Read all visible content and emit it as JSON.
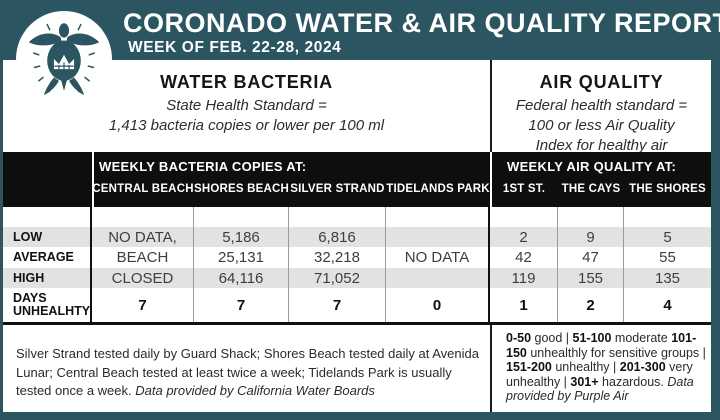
{
  "colors": {
    "teal": "#2B5561",
    "bar_black": "#0E0E0E",
    "stripe_gray": "#E2E2E2",
    "value_gray": "#3E3E3E"
  },
  "header": {
    "title": "CORONADO WATER & AIR QUALITY REPORT",
    "subtitle": "WEEK OF FEB. 22-28, 2024",
    "logo": "crowned-sea-turtle"
  },
  "water_section": {
    "title": "WATER BACTERIA",
    "standard_lines": [
      "State Health Standard =",
      "1,413 bacteria copies or lower per 100 ml"
    ]
  },
  "air_section": {
    "title": "AIR QUALITY",
    "standard_lines": [
      "Federal health standard =",
      "100 or less Air Quality",
      "Index for healthy air"
    ]
  },
  "chart_data": {
    "type": "table",
    "title": "CORONADO WATER & AIR QUALITY REPORT",
    "subtitle": "WEEK OF FEB. 22-28, 2024",
    "water": {
      "caption": "WEEKLY BACTERIA COPIES AT:",
      "columns": [
        "CENTRAL BEACH",
        "SHORES BEACH",
        "SILVER STRAND",
        "TIDELANDS PARK"
      ]
    },
    "air": {
      "caption": "WEEKLY AIR QUALITY AT:",
      "columns": [
        "1ST ST.",
        "THE CAYS",
        "THE SHORES"
      ]
    },
    "rows": [
      {
        "label": "LOW",
        "water": [
          "NO DATA,",
          "5,186",
          "6,816",
          ""
        ],
        "air": [
          "2",
          "9",
          "5"
        ]
      },
      {
        "label": "AVERAGE",
        "water": [
          "BEACH",
          "25,131",
          "32,218",
          "NO DATA"
        ],
        "air": [
          "42",
          "47",
          "55"
        ]
      },
      {
        "label": "HIGH",
        "water": [
          "CLOSED",
          "64,116",
          "71,052",
          ""
        ],
        "air": [
          "119",
          "155",
          "135"
        ]
      },
      {
        "label": "DAYS UNHEALHTY",
        "water": [
          "7",
          "7",
          "7",
          "0"
        ],
        "air": [
          "1",
          "2",
          "4"
        ]
      }
    ]
  },
  "footnotes": {
    "water": [
      {
        "text": "Silver Strand tested daily by Guard Shack; Shores Beach tested daily at Avenida Lunar; Central Beach tested at least twice a week; Tidelands Park is usually tested once a week. ",
        "style": "normal"
      },
      {
        "text": "Data provided by California Water Boards",
        "style": "italic"
      }
    ],
    "air": [
      {
        "text": "0-50",
        "style": "bold"
      },
      {
        "text": " good | ",
        "style": "normal"
      },
      {
        "text": "51-100",
        "style": "bold"
      },
      {
        "text": " moderate ",
        "style": "normal"
      },
      {
        "text": "101-150",
        "style": "bold"
      },
      {
        "text": " unhealthly for sensitive groups | ",
        "style": "normal"
      },
      {
        "text": "151-200",
        "style": "bold"
      },
      {
        "text": " unhealthy | ",
        "style": "normal"
      },
      {
        "text": "201-300",
        "style": "bold"
      },
      {
        "text": " very unhealthy | ",
        "style": "normal"
      },
      {
        "text": "301+",
        "style": "bold"
      },
      {
        "text": " hazardous. ",
        "style": "normal"
      },
      {
        "text": "Data provided by Purple Air",
        "style": "italic"
      }
    ]
  }
}
